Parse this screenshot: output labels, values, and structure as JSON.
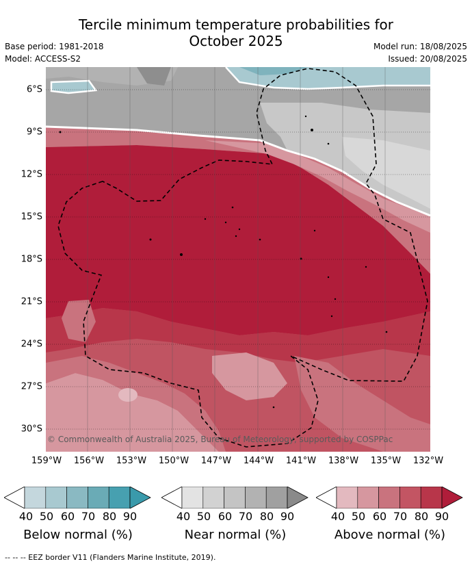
{
  "title_line1": "Tercile minimum temperature probabilities for",
  "title_line2": "October 2025",
  "base_period": "Base period: 1981-2018",
  "model": "Model: ACCESS-S2",
  "model_run": "Model run: 18/08/2025",
  "issued": "Issued: 20/08/2025",
  "copyright": "© Commonwealth of Australia 2025, Bureau of Meteorology, supported by COSPPac",
  "footer": "--  --  -- EEZ border V11 (Flanders Marine Institute, 2019).",
  "lon_labels": [
    "159°W",
    "156°W",
    "153°W",
    "150°W",
    "147°W",
    "144°W",
    "141°W",
    "138°W",
    "135°W",
    "132°W"
  ],
  "lat_labels": [
    "6°S",
    "9°S",
    "12°S",
    "15°S",
    "18°S",
    "21°S",
    "24°S",
    "27°S",
    "30°S"
  ],
  "colorbars": [
    {
      "title": "Below normal (%)",
      "ticks": [
        "40",
        "50",
        "60",
        "70",
        "80",
        "90"
      ],
      "colors": [
        "#c4d7dd",
        "#a8c9d0",
        "#8ab9c2",
        "#6aabb6",
        "#47a0b0",
        "#3a9aab"
      ]
    },
    {
      "title": "Near normal (%)",
      "ticks": [
        "40",
        "50",
        "60",
        "70",
        "80",
        "90"
      ],
      "colors": [
        "#e3e3e3",
        "#d2d2d2",
        "#c4c4c4",
        "#b2b2b2",
        "#a0a0a0",
        "#8a8a8a"
      ]
    },
    {
      "title": "Above normal (%)",
      "ticks": [
        "40",
        "50",
        "60",
        "70",
        "80",
        "90"
      ],
      "colors": [
        "#e3b9bf",
        "#d6979f",
        "#c9737e",
        "#c35563",
        "#b8364a",
        "#b01d3a"
      ]
    }
  ],
  "map_colors": {
    "near_light": "#d8d8d8",
    "near_mid": "#c8c8c8",
    "near_dark": "#a6a6a6",
    "near_darkest": "#8e8e8e",
    "below_light": "#a8c9d0",
    "below_mid": "#7fb3bd",
    "above_50": "#d6979f",
    "above_60": "#c9737e",
    "above_70": "#c05462",
    "above_80": "#b8364a",
    "above_90": "#b01d3a"
  }
}
